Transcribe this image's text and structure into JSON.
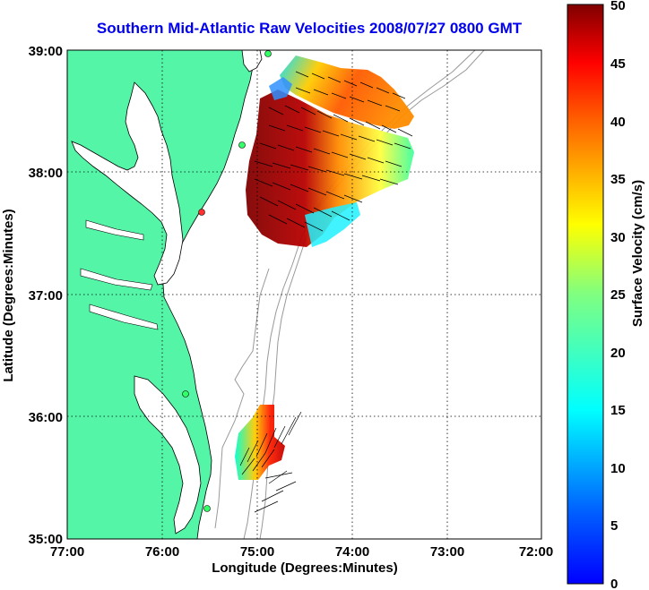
{
  "title": "Southern Mid-Atlantic Raw Velocities 2008/07/27 0800 GMT",
  "x_axis": {
    "label": "Longitude (Degrees:Minutes)",
    "ticks": [
      "77:00",
      "76:00",
      "75:00",
      "74:00",
      "73:00",
      "72:00"
    ],
    "range": [
      -77,
      -72
    ]
  },
  "y_axis": {
    "label": "Latitude (Degrees:Minutes)",
    "ticks": [
      "39:00",
      "38:00",
      "37:00",
      "36:00",
      "35:00"
    ],
    "range": [
      35,
      39
    ]
  },
  "colorbar": {
    "label": "Surface Velocity (cm/s)",
    "ticks": [
      "50",
      "45",
      "40",
      "35",
      "30",
      "25",
      "20",
      "15",
      "10",
      "5",
      "0"
    ],
    "range": [
      0,
      50
    ]
  },
  "colors": {
    "land": "#55f5a8",
    "coast_line": "#000000",
    "bathymetry_line": "#999999",
    "title": "#0000ee"
  },
  "grid": "dotted"
}
